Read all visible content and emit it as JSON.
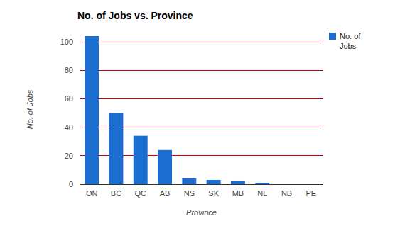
{
  "chart_data": {
    "type": "bar",
    "title": "No. of Jobs vs. Province",
    "x_label": "Province",
    "y_label": "No. of Jobs",
    "categories": [
      "ON",
      "BC",
      "QC",
      "AB",
      "NS",
      "SK",
      "MB",
      "NL",
      "NB",
      "PE"
    ],
    "series": [
      {
        "name": "No. of Jobs",
        "color": "#1c6dd0",
        "values": [
          104,
          50,
          34,
          24,
          4,
          3,
          2,
          1,
          0,
          0
        ]
      }
    ],
    "ylim": [
      0,
      105
    ],
    "yticks": [
      0,
      20,
      40,
      60,
      80,
      100
    ],
    "grid": true,
    "legend": "right"
  }
}
